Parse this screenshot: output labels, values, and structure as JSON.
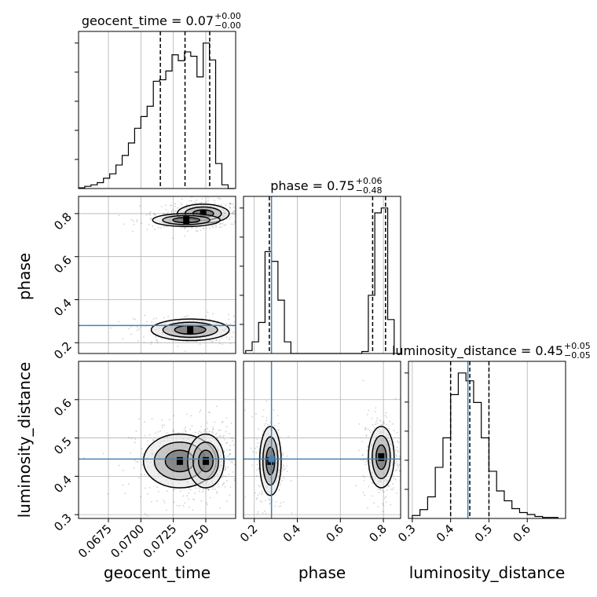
{
  "chart_data": {
    "type": "corner",
    "parameters": [
      "geocent_time",
      "phase",
      "luminosity_distance"
    ],
    "axis_labels": {
      "geocent_time": "geocent_time",
      "phase": "phase",
      "luminosity_distance": "luminosity_distance"
    },
    "ranges": {
      "geocent_time": [
        0.0652,
        0.0773
      ],
      "phase": [
        0.15,
        0.88
      ],
      "luminosity_distance": [
        0.29,
        0.7
      ]
    },
    "ticks": {
      "geocent_time": [
        0.0675,
        0.07,
        0.0725,
        0.075
      ],
      "phase": [
        0.2,
        0.4,
        0.6,
        0.8
      ],
      "luminosity_distance": [
        0.3,
        0.4,
        0.5,
        0.6
      ]
    },
    "tick_labels": {
      "geocent_time": [
        "0.0675",
        "0.0700",
        "0.0725",
        "0.0750"
      ],
      "phase": [
        "0.2",
        "0.4",
        "0.6",
        "0.8"
      ],
      "luminosity_distance": [
        "0.3",
        "0.4",
        "0.5",
        "0.6"
      ]
    },
    "titles": [
      {
        "param": "geocent_time",
        "label": "geocent_time = 0.07",
        "plus": "+0.00",
        "minus": "−0.00"
      },
      {
        "param": "phase",
        "label": "phase = 0.75",
        "plus": "+0.06",
        "minus": "−0.48"
      },
      {
        "param": "luminosity_distance",
        "label": "luminosity_distance = 0.45",
        "plus": "+0.05",
        "minus": "−0.05"
      }
    ],
    "quantiles": {
      "geocent_time": [
        0.0715,
        0.0734,
        0.0753
      ],
      "phase": [
        0.27,
        0.75,
        0.81
      ],
      "luminosity_distance": [
        0.4,
        0.45,
        0.5
      ]
    },
    "truths": {
      "geocent_time": null,
      "phase": 0.28,
      "luminosity_distance": 0.445
    },
    "truth_color": "#4682b4",
    "histograms": {
      "geocent_time": {
        "edges": [
          0.0652,
          0.06568,
          0.06616,
          0.06664,
          0.06712,
          0.0676,
          0.06808,
          0.06856,
          0.06904,
          0.06952,
          0.07,
          0.07048,
          0.07096,
          0.07144,
          0.07192,
          0.0724,
          0.07288,
          0.07336,
          0.07384,
          0.07432,
          0.0748,
          0.07528,
          0.07576,
          0.07624,
          0.07672,
          0.0772
        ],
        "counts": [
          1,
          3,
          5,
          8,
          14,
          20,
          32,
          45,
          62,
          82,
          98,
          112,
          146,
          148,
          160,
          182,
          174,
          186,
          180,
          152,
          198,
          175,
          34,
          5,
          0
        ]
      },
      "phase": {
        "edges": [
          0.16,
          0.19,
          0.22,
          0.25,
          0.28,
          0.31,
          0.34,
          0.37,
          0.4,
          0.43,
          0.46,
          0.49,
          0.52,
          0.55,
          0.58,
          0.61,
          0.64,
          0.67,
          0.7,
          0.73,
          0.76,
          0.79,
          0.82,
          0.85
        ],
        "counts": [
          3,
          12,
          32,
          105,
          95,
          55,
          12,
          0,
          0,
          0,
          0,
          0,
          0,
          0,
          0,
          0,
          0,
          0,
          2,
          60,
          145,
          150,
          35
        ]
      },
      "luminosity_distance": {
        "edges": [
          0.3,
          0.32,
          0.34,
          0.36,
          0.38,
          0.4,
          0.42,
          0.44,
          0.46,
          0.48,
          0.5,
          0.52,
          0.54,
          0.56,
          0.58,
          0.6,
          0.62,
          0.64,
          0.66,
          0.68
        ],
        "counts": [
          3,
          9,
          22,
          52,
          82,
          126,
          148,
          140,
          118,
          82,
          48,
          28,
          18,
          10,
          6,
          4,
          2,
          1,
          1
        ]
      }
    },
    "contour_clusters": {
      "phase_vs_geocent_time": [
        {
          "x": 0.0748,
          "y": 0.8,
          "sx": 0.001,
          "sy": 0.022,
          "w": 1.0
        },
        {
          "x": 0.0735,
          "y": 0.77,
          "sx": 0.0013,
          "sy": 0.015,
          "w": 0.6
        },
        {
          "x": 0.0738,
          "y": 0.26,
          "sx": 0.0015,
          "sy": 0.025,
          "w": 0.7
        }
      ],
      "luminosity_distance_vs_geocent_time": [
        {
          "x": 0.073,
          "y": 0.44,
          "sx": 0.0014,
          "sy": 0.035,
          "w": 1.0
        },
        {
          "x": 0.075,
          "y": 0.44,
          "sx": 0.0007,
          "sy": 0.035,
          "w": 0.9
        }
      ],
      "luminosity_distance_vs_phase": [
        {
          "x": 0.275,
          "y": 0.44,
          "sx": 0.025,
          "sy": 0.045,
          "w": 0.8
        },
        {
          "x": 0.79,
          "y": 0.45,
          "sx": 0.03,
          "sy": 0.04,
          "w": 1.0
        }
      ]
    },
    "grid": true,
    "quantile_linestyle": "dashed"
  }
}
